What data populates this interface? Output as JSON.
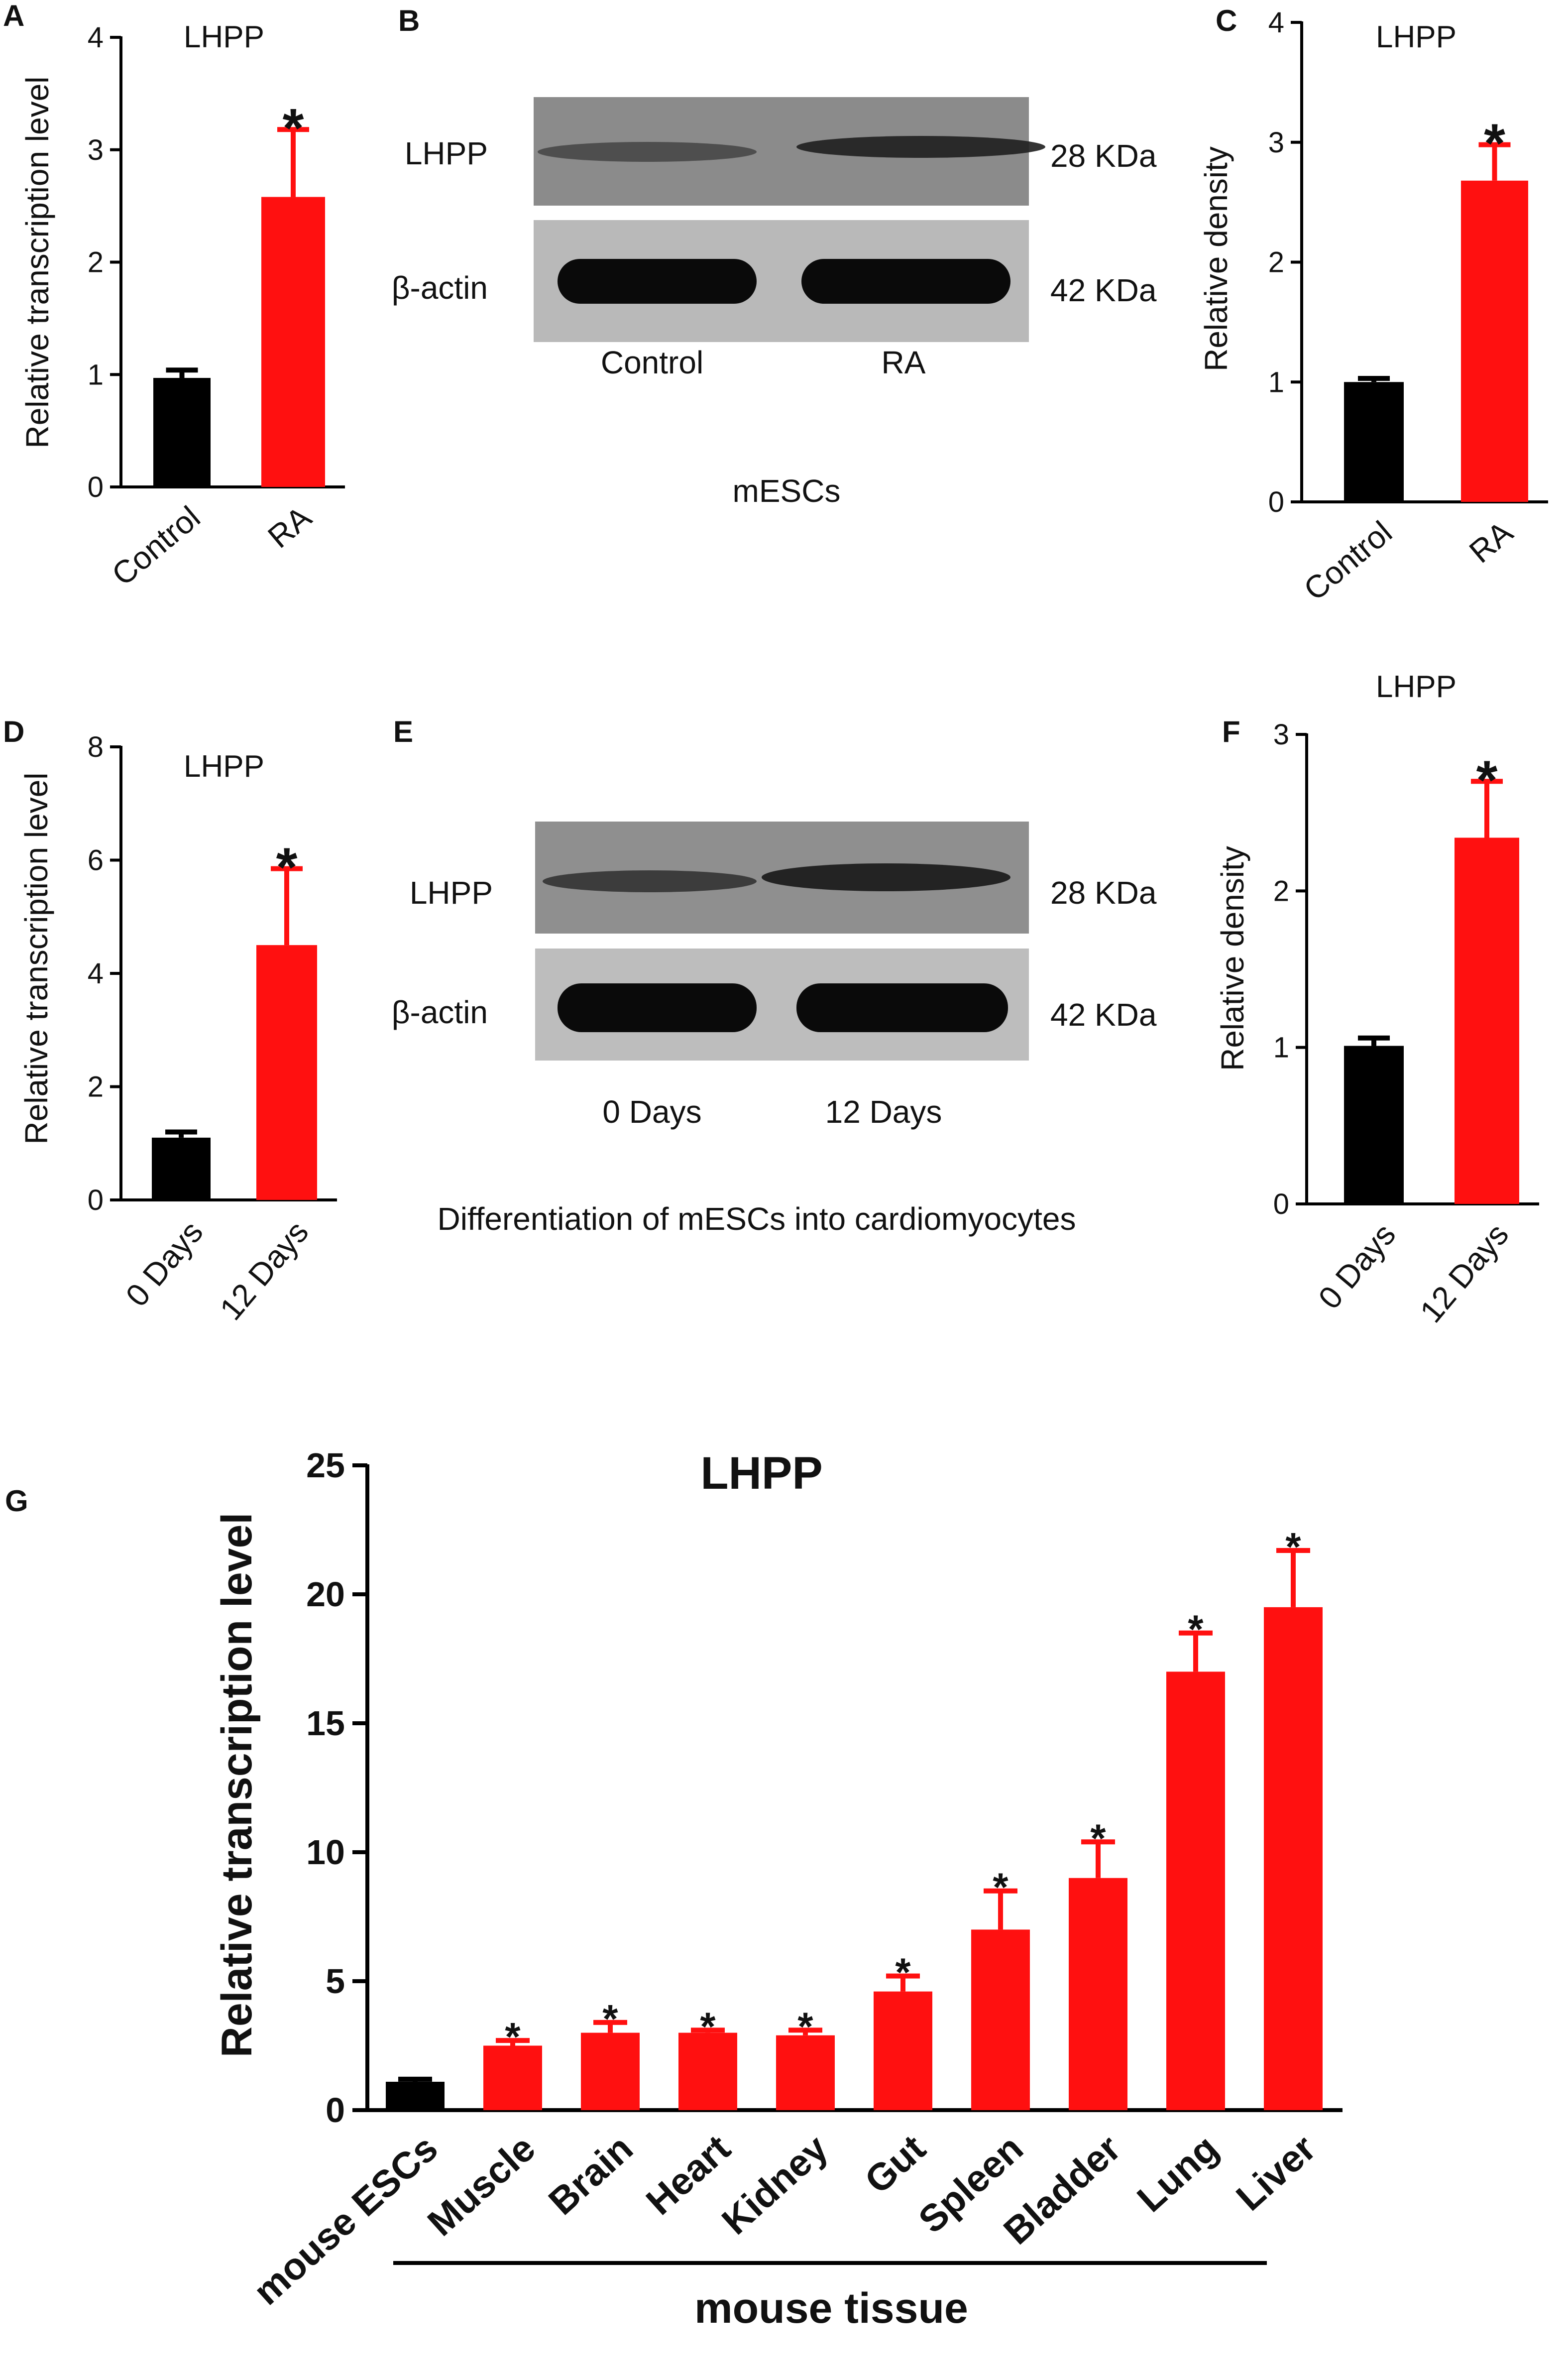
{
  "colors": {
    "control": "#000000",
    "treated": "#ff1010"
  },
  "blots": [
    {
      "panel": "B",
      "rows": [
        {
          "label": "LHPP",
          "kda": "28 KDa"
        },
        {
          "label": "β-actin",
          "kda": "42 KDa"
        }
      ],
      "lanes": [
        "Control",
        "RA"
      ],
      "caption": "mESCs"
    },
    {
      "panel": "E",
      "rows": [
        {
          "label": "LHPP",
          "kda": "28 KDa"
        },
        {
          "label": "β-actin",
          "kda": "42 KDa"
        }
      ],
      "lanes": [
        "0 Days",
        "12 Days"
      ],
      "caption": "Differentiation of mESCs into cardiomyocytes"
    }
  ],
  "chart_data": [
    {
      "panel": "A",
      "type": "bar",
      "title": "LHPP",
      "ylabel": "Relative transcription level",
      "xlabel": "",
      "ylim": [
        0,
        4
      ],
      "yticks": [
        0,
        1,
        2,
        3,
        4
      ],
      "categories": [
        "Control",
        "RA"
      ],
      "values": [
        0.97,
        2.58
      ],
      "errors": [
        0.07,
        0.6
      ],
      "significance": [
        "",
        "*"
      ],
      "bar_colors": [
        "control",
        "treated"
      ]
    },
    {
      "panel": "C",
      "type": "bar",
      "title": "LHPP",
      "ylabel": "Relative density",
      "xlabel": "",
      "ylim": [
        0,
        4
      ],
      "yticks": [
        0,
        1,
        2,
        3,
        4
      ],
      "categories": [
        "Control",
        "RA"
      ],
      "values": [
        1.0,
        2.68
      ],
      "errors": [
        0.03,
        0.3
      ],
      "significance": [
        "",
        "*"
      ],
      "bar_colors": [
        "control",
        "treated"
      ]
    },
    {
      "panel": "D",
      "type": "bar",
      "title": "LHPP",
      "ylabel": "Relative transcription level",
      "xlabel": "",
      "ylim": [
        0,
        8
      ],
      "yticks": [
        0,
        2,
        4,
        6,
        8
      ],
      "categories": [
        "0 Days",
        "12 Days"
      ],
      "values": [
        1.1,
        4.5
      ],
      "errors": [
        0.1,
        1.35
      ],
      "significance": [
        "",
        "*"
      ],
      "bar_colors": [
        "control",
        "treated"
      ]
    },
    {
      "panel": "F",
      "type": "bar",
      "title": "LHPP",
      "ylabel": "Relative density",
      "xlabel": "",
      "ylim": [
        0,
        3
      ],
      "yticks": [
        0,
        1,
        2,
        3
      ],
      "categories": [
        "0 Days",
        "12 Days"
      ],
      "values": [
        1.01,
        2.34
      ],
      "errors": [
        0.05,
        0.36
      ],
      "significance": [
        "",
        "*"
      ],
      "bar_colors": [
        "control",
        "treated"
      ]
    },
    {
      "panel": "G",
      "type": "bar",
      "title": "LHPP",
      "ylabel": "Relative transcription level",
      "xlabel": "mouse tissue",
      "ylim": [
        0,
        25
      ],
      "yticks": [
        0,
        5,
        10,
        15,
        20,
        25
      ],
      "categories": [
        "mouse ESCs",
        "Muscle",
        "Brain",
        "Heart",
        "Kidney",
        "Gut",
        "Spleen",
        "Bladder",
        "Lung",
        "Liver"
      ],
      "values": [
        1.1,
        2.5,
        3.0,
        3.0,
        2.9,
        4.6,
        7.0,
        9.0,
        17.0,
        19.5
      ],
      "errors": [
        0.1,
        0.2,
        0.4,
        0.1,
        0.2,
        0.6,
        1.5,
        1.4,
        1.5,
        2.2
      ],
      "significance": [
        "",
        "*",
        "*",
        "*",
        "*",
        "*",
        "*",
        "*",
        "*",
        "*"
      ],
      "bar_colors": [
        "control",
        "treated",
        "treated",
        "treated",
        "treated",
        "treated",
        "treated",
        "treated",
        "treated",
        "treated"
      ]
    }
  ]
}
